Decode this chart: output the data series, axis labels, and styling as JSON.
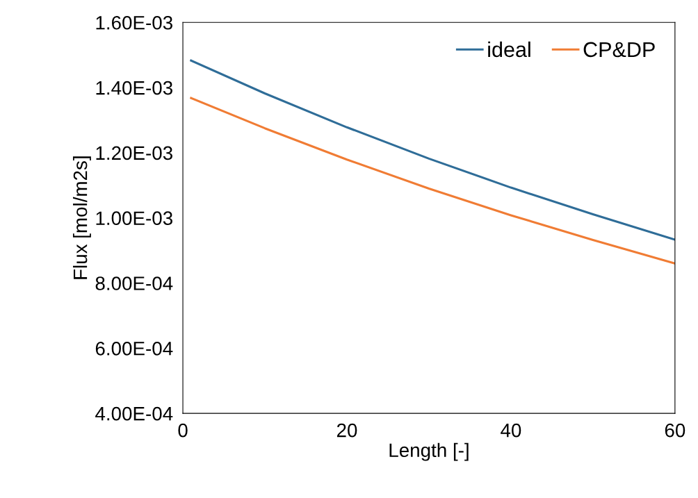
{
  "chart_data": {
    "type": "line",
    "xlabel": "Length [-]",
    "ylabel": "Flux [mol/m2s]",
    "x": [
      1,
      10,
      20,
      30,
      40,
      50,
      60
    ],
    "series": [
      {
        "name": "ideal",
        "color": "#2f6d98",
        "values": [
          0.001483,
          0.001382,
          0.001278,
          0.001182,
          0.001093,
          0.001011,
          0.000933
        ]
      },
      {
        "name": "CP&DP",
        "color": "#f07c34",
        "values": [
          0.001368,
          0.001275,
          0.001179,
          0.00109,
          0.001008,
          0.000932,
          0.00086
        ]
      }
    ],
    "xlim": [
      0,
      60
    ],
    "xticks": [
      0,
      20,
      40,
      60
    ],
    "ylim": [
      0.0004,
      0.0016
    ],
    "yticks": [
      {
        "value": 0.0004,
        "label": "4.00E-04"
      },
      {
        "value": 0.0006,
        "label": "6.00E-04"
      },
      {
        "value": 0.0008,
        "label": "8.00E-04"
      },
      {
        "value": 0.001,
        "label": "1.00E-03"
      },
      {
        "value": 0.0012,
        "label": "1.20E-03"
      },
      {
        "value": 0.0014,
        "label": "1.40E-03"
      },
      {
        "value": 0.0016,
        "label": "1.60E-03"
      }
    ],
    "grid": false,
    "legend": "top right",
    "marker": "none",
    "line_style": "solid"
  }
}
